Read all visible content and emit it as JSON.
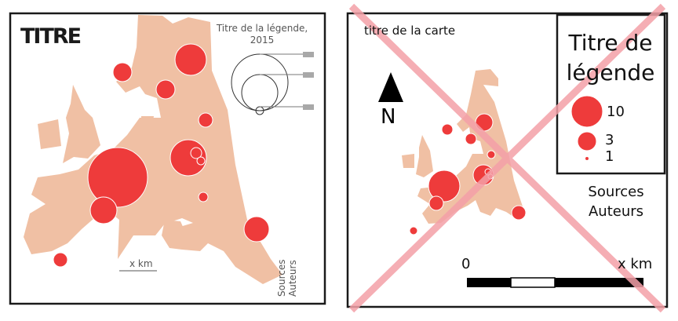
{
  "colors": {
    "land": "#f0c0a4",
    "circle": "#ee3b3b",
    "circle_stroke": "#ffffff",
    "frame": "#1a1a1a",
    "cross": "#f4a0a8",
    "legend_swatch": "#a8a8a8"
  },
  "left_map": {
    "title": "TITRE",
    "legend_title": "Titre de la légende, 2015",
    "scale_label": "x km",
    "sources": [
      "Sources",
      "Auteurs"
    ]
  },
  "right_map": {
    "map_title": "titre de la carte",
    "north_label": "N",
    "legend_title": "Titre de légende",
    "legend_values": [
      "10",
      "3",
      "1"
    ],
    "sources": [
      "Sources",
      "Auteurs"
    ],
    "scale_start": "0",
    "scale_end": "x km",
    "icon": "north-arrow-icon"
  }
}
